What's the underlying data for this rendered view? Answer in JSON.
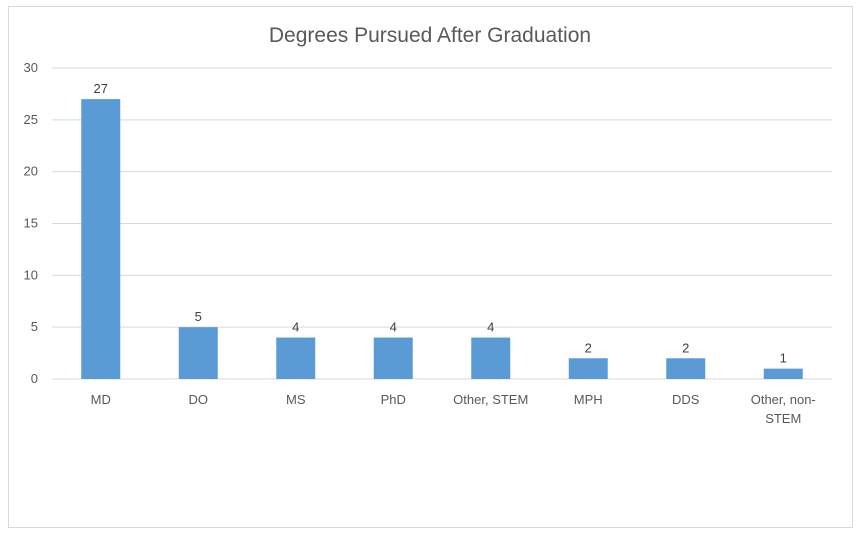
{
  "chart_data": {
    "type": "bar",
    "title": "Degrees Pursued After Graduation",
    "xlabel": "",
    "ylabel": "",
    "categories": [
      [
        "MD"
      ],
      [
        "DO"
      ],
      [
        "MS"
      ],
      [
        "PhD"
      ],
      [
        "Other, STEM"
      ],
      [
        "MPH"
      ],
      [
        "DDS"
      ],
      [
        "Other, non-",
        "STEM"
      ]
    ],
    "values": [
      27,
      5,
      4,
      4,
      4,
      2,
      2,
      1
    ],
    "ylim": [
      0,
      30
    ],
    "yticks": [
      0,
      5,
      10,
      15,
      20,
      25,
      30
    ],
    "grid": true,
    "legend": "none",
    "bar_color": "#5b9bd5",
    "grid_color": "#d9d9d9"
  }
}
